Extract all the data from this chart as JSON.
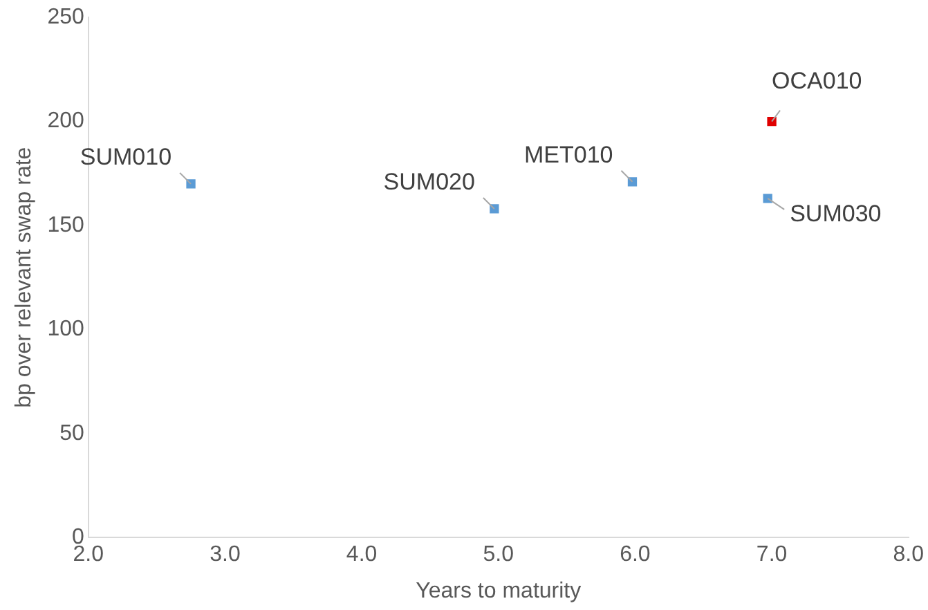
{
  "chart_data": {
    "type": "scatter",
    "xlabel": "Years to maturity",
    "ylabel": "bp over relevant swap rate",
    "x": [
      2.75,
      4.97,
      5.98,
      7.0,
      6.97
    ],
    "values": [
      170,
      158,
      171,
      200,
      163
    ],
    "colors": [
      "#5b9bd5",
      "#5b9bd5",
      "#5b9bd5",
      "#e00000",
      "#5b9bd5"
    ],
    "marker": "square",
    "grid": false,
    "legend": false,
    "xlim": [
      2,
      8
    ],
    "xticks": [
      {
        "value": 2,
        "label": "2.0"
      },
      {
        "value": 3,
        "label": "3.0"
      },
      {
        "value": 4,
        "label": "4.0"
      },
      {
        "value": 5,
        "label": "5.0"
      },
      {
        "value": 6,
        "label": "6.0"
      },
      {
        "value": 7,
        "label": "7.0"
      },
      {
        "value": 8,
        "label": "8.0"
      }
    ],
    "ylim": [
      0,
      250
    ],
    "yticks": [
      0,
      50,
      100,
      150,
      200,
      250
    ],
    "annotations": [
      {
        "text": "SUM010",
        "x": 2.75,
        "y": 170
      },
      {
        "text": "SUM020",
        "x": 4.97,
        "y": 158
      },
      {
        "text": "MET010",
        "x": 5.98,
        "y": 171
      },
      {
        "text": "OCA010",
        "x": 7.0,
        "y": 200
      },
      {
        "text": "SUM030",
        "x": 6.97,
        "y": 163
      }
    ]
  }
}
